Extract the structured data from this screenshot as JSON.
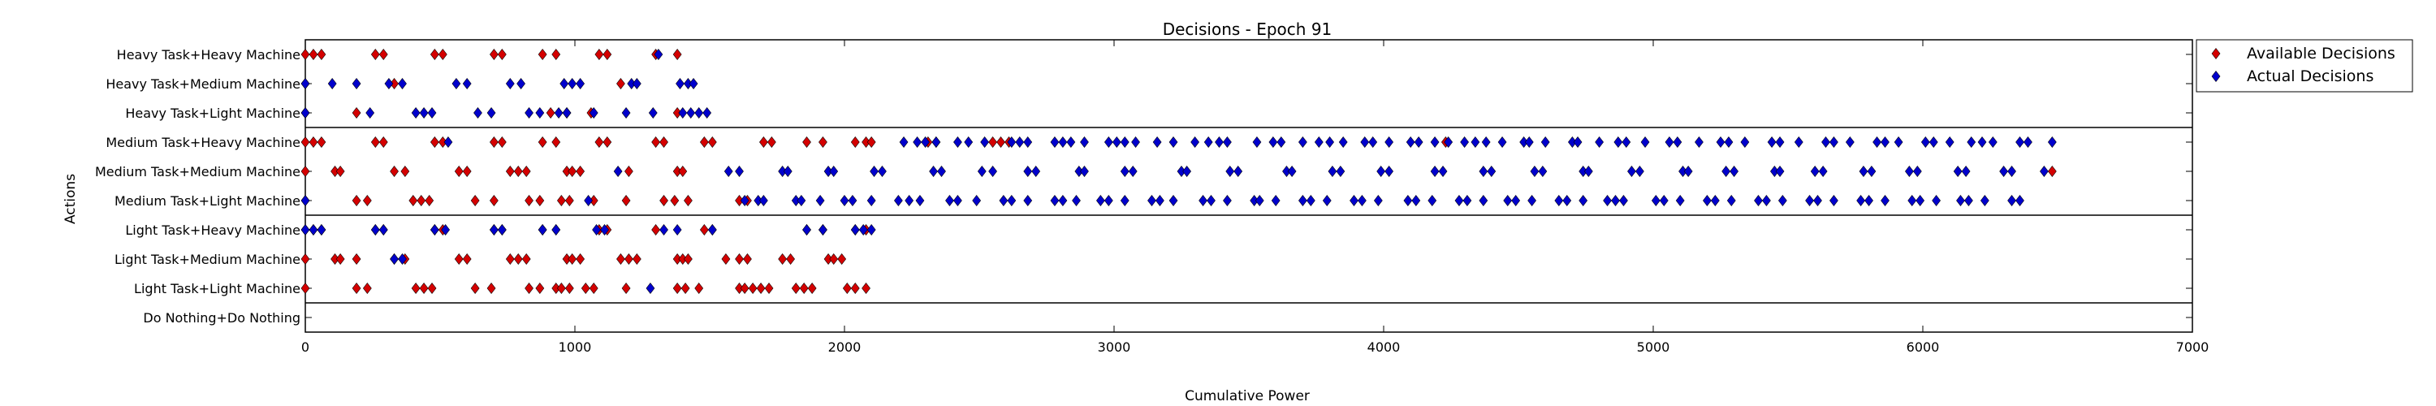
{
  "chart_data": {
    "type": "scatter",
    "title": "Decisions - Epoch 91",
    "xlabel": "Cumulative Power",
    "ylabel": "Actions",
    "xlim": [
      0,
      7000
    ],
    "xticks": [
      0,
      1000,
      2000,
      3000,
      4000,
      5000,
      6000,
      7000
    ],
    "grid": false,
    "legend_position": "outside right, top",
    "categories": [
      "Heavy Task+Heavy Machine",
      "Heavy Task+Medium Machine",
      "Heavy Task+Light Machine",
      "Medium Task+Heavy Machine",
      "Medium Task+Medium Machine",
      "Medium Task+Light Machine",
      "Light Task+Heavy Machine",
      "Light Task+Medium Machine",
      "Light Task+Light Machine",
      "Do Nothing+Do Nothing"
    ],
    "group_separators_after": [
      2,
      5,
      8
    ],
    "series": [
      {
        "name": "Available Decisions",
        "color": "#d40000",
        "points": [
          {
            "cat": 0,
            "x": [
              0,
              30,
              60,
              260,
              290,
              480,
              510,
              700,
              730,
              880,
              930,
              1090,
              1120,
              1300,
              1380
            ]
          },
          {
            "cat": 1,
            "x": [
              0,
              330,
              1170
            ]
          },
          {
            "cat": 2,
            "x": [
              0,
              190,
              910,
              970,
              1060,
              1380
            ]
          },
          {
            "cat": 3,
            "x": [
              0,
              30,
              60,
              260,
              290,
              480,
              510,
              700,
              730,
              880,
              930,
              1090,
              1120,
              1300,
              1330,
              1480,
              1510,
              1700,
              1730,
              1860,
              1920,
              2040,
              2080,
              2100,
              2310,
              2340,
              2550,
              2580,
              2610,
              4230
            ]
          },
          {
            "cat": 4,
            "x": [
              0,
              110,
              130,
              330,
              370,
              570,
              600,
              760,
              790,
              820,
              970,
              990,
              1020,
              1200,
              1380,
              1400,
              6480
            ]
          },
          {
            "cat": 5,
            "x": [
              0,
              190,
              230,
              400,
              430,
              460,
              630,
              700,
              830,
              870,
              950,
              980,
              1070,
              1190,
              1330,
              1370,
              1420,
              1610,
              1640
            ]
          },
          {
            "cat": 6,
            "x": [
              0,
              30,
              60,
              260,
              290,
              480,
              510,
              700,
              730,
              880,
              930,
              1090,
              1120,
              1300,
              1480,
              1510,
              1860,
              1920,
              2040,
              2080
            ]
          },
          {
            "cat": 7,
            "x": [
              0,
              110,
              130,
              190,
              330,
              370,
              570,
              600,
              760,
              790,
              820,
              970,
              990,
              1020,
              1170,
              1200,
              1230,
              1380,
              1400,
              1420,
              1560,
              1610,
              1640,
              1770,
              1800,
              1940,
              1960,
              1990
            ]
          },
          {
            "cat": 8,
            "x": [
              0,
              190,
              230,
              410,
              440,
              470,
              630,
              690,
              830,
              870,
              930,
              950,
              980,
              1040,
              1070,
              1190,
              1380,
              1410,
              1460,
              1610,
              1630,
              1660,
              1690,
              1720,
              1820,
              1850,
              1880,
              2010,
              2040,
              2080
            ]
          }
        ]
      },
      {
        "name": "Actual Decisions",
        "color": "#0000cc",
        "points": [
          {
            "cat": 0,
            "x": [
              1310
            ]
          },
          {
            "cat": 1,
            "x": [
              0,
              100,
              190,
              310,
              360,
              560,
              600,
              760,
              800,
              960,
              990,
              1020,
              1210,
              1230,
              1390,
              1420,
              1440
            ]
          },
          {
            "cat": 2,
            "x": [
              0,
              240,
              410,
              440,
              470,
              640,
              690,
              830,
              870,
              940,
              970,
              1070,
              1190,
              1290,
              1400,
              1430,
              1460,
              1490
            ]
          },
          {
            "cat": 3,
            "x": [
              530,
              2220,
              2270,
              2300,
              2340,
              2420,
              2460,
              2520,
              2620,
              2650,
              2680,
              2780,
              2810,
              2840,
              2890,
              2980,
              3010,
              3040,
              3080,
              3160,
              3220,
              3300,
              3350,
              3390,
              3420,
              3530,
              3590,
              3620,
              3700,
              3760,
              3800,
              3850,
              3930,
              3960,
              4020,
              4100,
              4130,
              4190,
              4240,
              4300,
              4340,
              4380,
              4440,
              4520,
              4540,
              4600,
              4700,
              4720,
              4800,
              4870,
              4900,
              4970,
              5060,
              5090,
              5170,
              5250,
              5280,
              5340,
              5440,
              5470,
              5540,
              5640,
              5670,
              5730,
              5830,
              5860,
              5910,
              6010,
              6040,
              6100,
              6180,
              6220,
              6260,
              6360,
              6390,
              6480
            ]
          },
          {
            "cat": 4,
            "x": [
              1160,
              1570,
              1610,
              1770,
              1790,
              1940,
              1960,
              2110,
              2140,
              2330,
              2360,
              2510,
              2550,
              2680,
              2710,
              2870,
              2890,
              3040,
              3070,
              3250,
              3270,
              3430,
              3460,
              3640,
              3660,
              3810,
              3840,
              3990,
              4020,
              4190,
              4220,
              4370,
              4400,
              4560,
              4590,
              4740,
              4760,
              4920,
              4950,
              5110,
              5130,
              5270,
              5300,
              5450,
              5470,
              5600,
              5630,
              5780,
              5810,
              5950,
              5980,
              6130,
              6160,
              6300,
              6330,
              6450
            ]
          },
          {
            "cat": 5,
            "x": [
              0,
              1050,
              1630,
              1680,
              1700,
              1820,
              1840,
              1910,
              2000,
              2030,
              2100,
              2200,
              2240,
              2280,
              2390,
              2420,
              2490,
              2590,
              2620,
              2680,
              2780,
              2810,
              2860,
              2950,
              2980,
              3040,
              3140,
              3170,
              3220,
              3330,
              3360,
              3420,
              3520,
              3540,
              3600,
              3700,
              3730,
              3790,
              3890,
              3920,
              3980,
              4090,
              4120,
              4180,
              4280,
              4310,
              4370,
              4460,
              4490,
              4550,
              4650,
              4680,
              4740,
              4830,
              4860,
              4890,
              5010,
              5040,
              5100,
              5200,
              5230,
              5290,
              5390,
              5420,
              5480,
              5580,
              5610,
              5670,
              5770,
              5800,
              5860,
              5960,
              5990,
              6050,
              6140,
              6170,
              6230,
              6330,
              6360
            ]
          },
          {
            "cat": 6,
            "x": [
              0,
              30,
              60,
              260,
              290,
              480,
              520,
              700,
              730,
              880,
              930,
              1080,
              1110,
              1330,
              1380,
              1510,
              1860,
              1920,
              2040,
              2070,
              2100
            ]
          },
          {
            "cat": 7,
            "x": [
              330,
              360
            ]
          },
          {
            "cat": 8,
            "x": [
              1280
            ]
          }
        ]
      }
    ]
  }
}
